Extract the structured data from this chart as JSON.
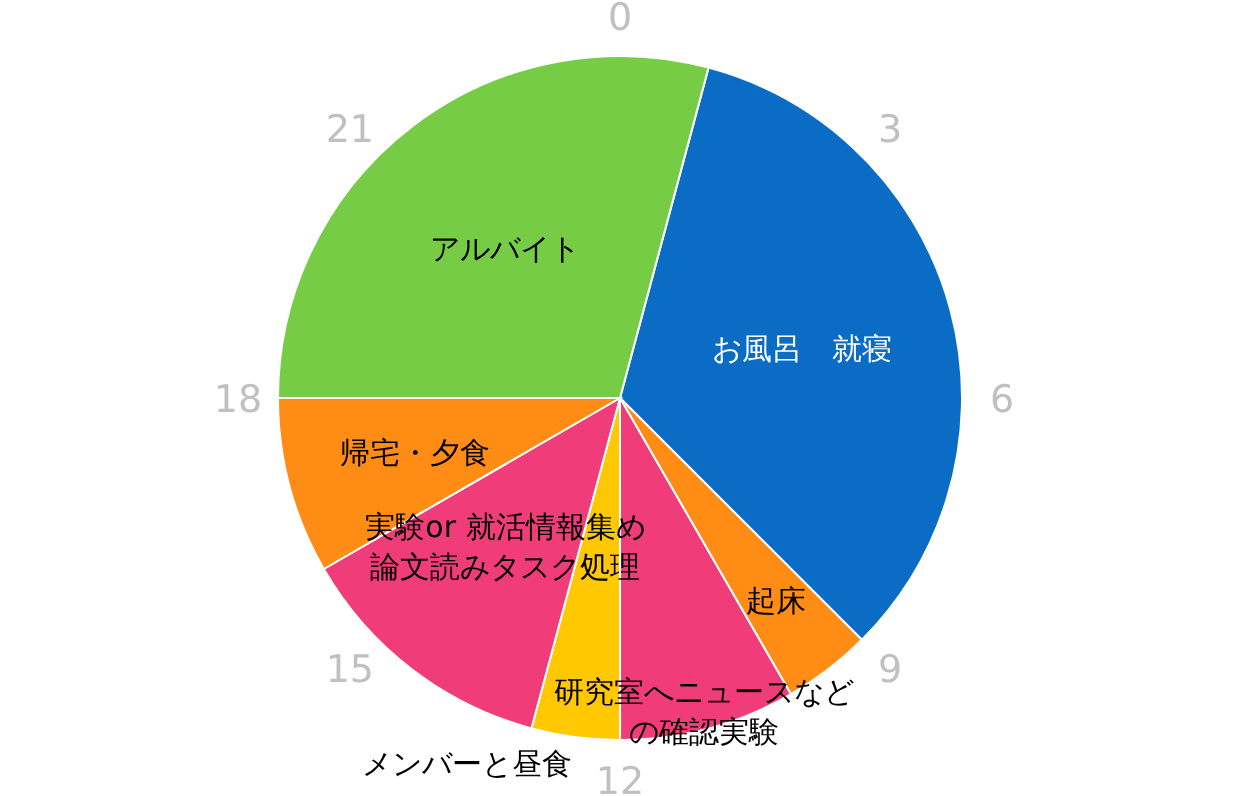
{
  "chart_data": {
    "type": "pie",
    "categories": [
      "お風呂　就寝",
      "起床",
      "研究室へニュースなどの確認実験",
      "メンバーと昼食",
      "実験or 就活情報集め論文読みタスク処理",
      "帰宅・夕食",
      "アルバイト"
    ],
    "values": [
      33.33,
      4.17,
      8.33,
      4.17,
      12.5,
      8.33,
      29.17
    ],
    "colors": [
      "#0b6cc5",
      "#ff8c14",
      "#f03c78",
      "#ffc800",
      "#f03c78",
      "#ff8c14",
      "#76cd45"
    ],
    "annotations": [
      "0",
      "3",
      "6",
      "9",
      "12",
      "15",
      "18",
      "21"
    ]
  }
}
